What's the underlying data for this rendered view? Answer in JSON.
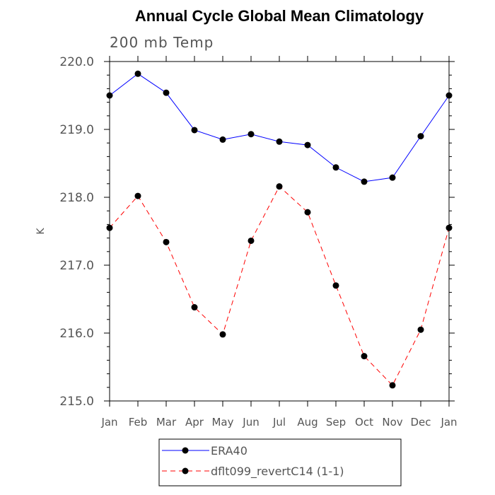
{
  "chart_data": {
    "type": "line",
    "title": "Annual Cycle Global Mean Climatology",
    "subtitle": "200 mb Temp",
    "xlabel": "",
    "ylabel": "K",
    "categories": [
      "Jan",
      "Feb",
      "Mar",
      "Apr",
      "May",
      "Jun",
      "Jul",
      "Aug",
      "Sep",
      "Oct",
      "Nov",
      "Dec",
      "Jan"
    ],
    "ylim": [
      215.0,
      220.0
    ],
    "yticks": [
      "215.0",
      "216.0",
      "217.0",
      "218.0",
      "219.0",
      "220.0"
    ],
    "grid": false,
    "legend_position": "bottom-center",
    "series": [
      {
        "name": "ERA40",
        "color": "#0000ff",
        "style": "solid",
        "values": [
          219.5,
          219.82,
          219.54,
          218.99,
          218.85,
          218.93,
          218.82,
          218.77,
          218.44,
          218.23,
          218.29,
          218.9,
          219.5
        ]
      },
      {
        "name": "dflt099_revertC14 (1-1)",
        "color": "#ff0000",
        "style": "dashed",
        "values": [
          217.55,
          218.02,
          217.34,
          216.38,
          215.98,
          217.36,
          218.16,
          217.78,
          216.7,
          215.66,
          215.23,
          216.05,
          217.55
        ]
      }
    ]
  }
}
